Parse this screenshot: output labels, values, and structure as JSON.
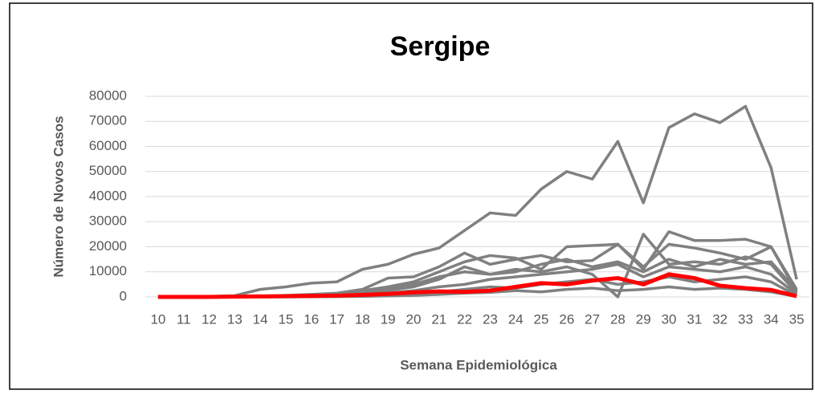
{
  "chart_data": {
    "type": "line",
    "title": "Sergipe",
    "x_label": "Semana Epidemiológica",
    "y_label": "Número de Novos Casos",
    "categories": [
      10,
      11,
      12,
      13,
      14,
      15,
      16,
      17,
      18,
      19,
      20,
      21,
      22,
      23,
      24,
      25,
      26,
      27,
      28,
      29,
      30,
      31,
      32,
      33,
      34,
      35
    ],
    "series": [
      {
        "color": "#808080",
        "values": [
          0,
          0,
          200,
          500,
          3000,
          4000,
          5500,
          6000,
          11000,
          13000,
          17000,
          19500,
          26500,
          33500,
          32500,
          43000,
          50000,
          47000,
          62000,
          37500,
          67500,
          73000,
          69500,
          76000,
          51500,
          7000
        ]
      },
      {
        "color": "#808080",
        "values": [
          0,
          0,
          0,
          100,
          300,
          600,
          1000,
          1500,
          3000,
          7500,
          8000,
          12000,
          17500,
          13000,
          15000,
          16500,
          14000,
          14500,
          21000,
          11000,
          26000,
          22500,
          22500,
          23000,
          20000,
          3000
        ]
      },
      {
        "color": "#808080",
        "values": [
          0,
          0,
          0,
          100,
          200,
          500,
          900,
          1400,
          2500,
          4000,
          6000,
          10000,
          14000,
          16500,
          15500,
          11000,
          20000,
          20500,
          21000,
          12000,
          21000,
          19500,
          17500,
          15000,
          20000,
          2000
        ]
      },
      {
        "color": "#808080",
        "values": [
          0,
          0,
          0,
          0,
          100,
          300,
          600,
          1000,
          2000,
          3500,
          5000,
          8000,
          10000,
          9000,
          11000,
          10000,
          12000,
          9000,
          0,
          25000,
          13000,
          14000,
          13000,
          16000,
          13000,
          1500
        ]
      },
      {
        "color": "#808080",
        "values": [
          0,
          0,
          0,
          0,
          100,
          200,
          400,
          800,
          1500,
          2500,
          4000,
          7000,
          12000,
          9000,
          10000,
          13000,
          15000,
          12000,
          14000,
          10000,
          15000,
          12000,
          15000,
          13000,
          14000,
          2500
        ]
      },
      {
        "color": "#808080",
        "values": [
          0,
          0,
          0,
          0,
          50,
          100,
          200,
          400,
          800,
          1500,
          2500,
          4000,
          5000,
          7000,
          8000,
          9000,
          10000,
          11000,
          13000,
          8000,
          12000,
          11000,
          10000,
          12000,
          9000,
          1000
        ]
      },
      {
        "color": "#808080",
        "values": [
          0,
          0,
          0,
          0,
          0,
          50,
          100,
          200,
          400,
          700,
          1200,
          2000,
          3000,
          4000,
          3500,
          5000,
          6000,
          7000,
          5000,
          6000,
          8000,
          6000,
          7000,
          8000,
          6000,
          500
        ]
      },
      {
        "color": "#808080",
        "values": [
          0,
          0,
          0,
          0,
          0,
          0,
          50,
          100,
          200,
          400,
          600,
          1000,
          1500,
          1800,
          2500,
          2000,
          3000,
          3500,
          2500,
          3000,
          4000,
          3000,
          3500,
          3000,
          2000,
          200
        ]
      },
      {
        "color": "#ff0000",
        "values": [
          0,
          0,
          0,
          100,
          200,
          300,
          400,
          500,
          800,
          1200,
          1800,
          2200,
          2000,
          2500,
          4000,
          5500,
          5000,
          6500,
          7500,
          5000,
          9000,
          7500,
          4500,
          3500,
          2800,
          300
        ]
      }
    ],
    "ylim": [
      0,
      80000
    ],
    "yticks": [
      0,
      10000,
      20000,
      30000,
      40000,
      50000,
      60000,
      70000,
      80000
    ],
    "grid": true
  }
}
